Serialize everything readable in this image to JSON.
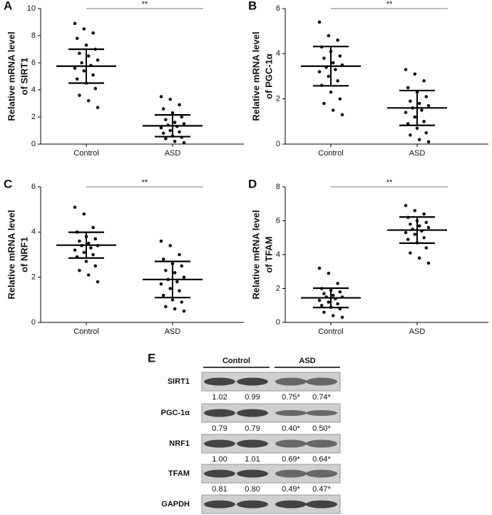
{
  "chart_data": [
    {
      "type": "dot-scatter",
      "panel_label": "A",
      "y_label": [
        "Relative mRNA level",
        "of SIRT1"
      ],
      "categories": [
        "Control",
        "ASD"
      ],
      "significance": "**",
      "ylim": [
        0,
        10
      ],
      "yticks": [
        0,
        2,
        4,
        6,
        8,
        10
      ],
      "groups": [
        {
          "values": [
            8.9,
            8.5,
            8.2,
            7.8,
            7.3,
            7.0,
            6.7,
            6.5,
            6.2,
            6.0,
            5.8,
            5.6,
            5.4,
            5.1,
            4.8,
            4.5,
            4.1,
            3.6,
            3.2,
            2.7
          ],
          "mean": 5.75,
          "sd": 1.25
        },
        {
          "values": [
            3.5,
            3.3,
            2.9,
            2.6,
            2.3,
            2.0,
            1.8,
            1.6,
            1.5,
            1.4,
            1.3,
            1.2,
            1.0,
            0.9,
            0.8,
            0.6,
            0.5,
            0.4,
            0.2,
            0.1
          ],
          "mean": 1.35,
          "sd": 0.8
        }
      ]
    },
    {
      "type": "dot-scatter",
      "panel_label": "B",
      "y_label": [
        "Relative mRNA level",
        "of PGC-1α"
      ],
      "categories": [
        "Control",
        "ASD"
      ],
      "significance": "**",
      "ylim": [
        0,
        6
      ],
      "yticks": [
        0,
        2,
        4,
        6
      ],
      "groups": [
        {
          "values": [
            5.4,
            4.8,
            4.6,
            4.3,
            4.1,
            3.9,
            3.8,
            3.6,
            3.5,
            3.4,
            3.3,
            3.2,
            3.0,
            2.8,
            2.6,
            2.3,
            2.0,
            1.8,
            1.5,
            1.3
          ],
          "mean": 3.45,
          "sd": 0.87
        },
        {
          "values": [
            3.3,
            3.1,
            2.8,
            2.5,
            2.3,
            2.1,
            1.9,
            1.8,
            1.7,
            1.6,
            1.5,
            1.4,
            1.2,
            1.0,
            0.9,
            0.7,
            0.5,
            0.4,
            0.2,
            0.1
          ],
          "mean": 1.6,
          "sd": 0.77
        }
      ]
    },
    {
      "type": "dot-scatter",
      "panel_label": "C",
      "y_label": [
        "Relative mRNA level",
        "of NRF1"
      ],
      "categories": [
        "Control",
        "ASD"
      ],
      "significance": "**",
      "ylim": [
        0,
        6
      ],
      "yticks": [
        0,
        2,
        4,
        6
      ],
      "groups": [
        {
          "values": [
            5.1,
            4.8,
            4.2,
            4.0,
            3.8,
            3.7,
            3.6,
            3.5,
            3.4,
            3.4,
            3.3,
            3.2,
            3.1,
            3.0,
            2.9,
            2.7,
            2.5,
            2.3,
            2.1,
            1.8
          ],
          "mean": 3.42,
          "sd": 0.57
        },
        {
          "values": [
            3.6,
            3.4,
            3.0,
            2.8,
            2.6,
            2.5,
            2.3,
            2.2,
            2.0,
            1.9,
            1.8,
            1.7,
            1.5,
            1.4,
            1.2,
            1.0,
            0.9,
            0.7,
            0.6,
            0.5
          ],
          "mean": 1.9,
          "sd": 0.8
        }
      ]
    },
    {
      "type": "dot-scatter",
      "panel_label": "D",
      "y_label": [
        "Relative mRNA level",
        "of TFAM"
      ],
      "categories": [
        "Control",
        "ASD"
      ],
      "significance": "**",
      "ylim": [
        0,
        8
      ],
      "yticks": [
        0,
        2,
        4,
        6,
        8
      ],
      "groups": [
        {
          "values": [
            3.2,
            2.9,
            2.3,
            2.0,
            1.9,
            1.8,
            1.7,
            1.6,
            1.5,
            1.5,
            1.4,
            1.3,
            1.2,
            1.1,
            1.0,
            0.9,
            0.8,
            0.6,
            0.4,
            0.3
          ],
          "mean": 1.45,
          "sd": 0.57
        },
        {
          "values": [
            6.9,
            6.6,
            6.4,
            6.2,
            6.0,
            5.9,
            5.8,
            5.7,
            5.6,
            5.5,
            5.4,
            5.3,
            5.2,
            5.0,
            4.9,
            4.7,
            4.4,
            4.1,
            3.8,
            3.5
          ],
          "mean": 5.45,
          "sd": 0.77
        }
      ]
    }
  ],
  "blot": {
    "panel_label": "E",
    "groups": [
      "Control",
      "ASD"
    ],
    "rows": [
      {
        "label": "SIRT1",
        "values": [
          "1.02",
          "0.99",
          "0.75*",
          "0.74*"
        ]
      },
      {
        "label": "PGC-1α",
        "values": [
          "0.79",
          "0.79",
          "0.40*",
          "0.50*"
        ]
      },
      {
        "label": "NRF1",
        "values": [
          "1.00",
          "1.01",
          "0.69*",
          "0.64*"
        ]
      },
      {
        "label": "TFAM",
        "values": [
          "0.81",
          "0.80",
          "0.49*",
          "0.47*"
        ]
      },
      {
        "label": "GAPDH"
      }
    ]
  }
}
